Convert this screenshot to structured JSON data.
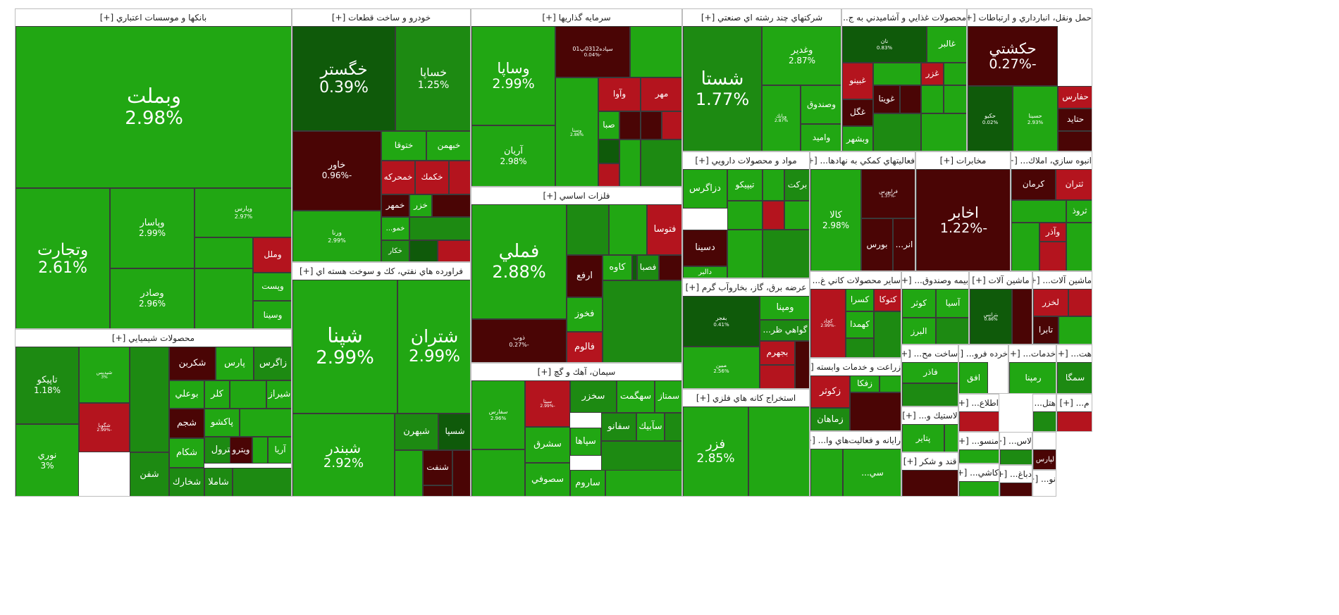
{
  "chart_data": {
    "type": "treemap",
    "colors": {
      "up_strong": "#21a713",
      "up_mid": "#1d8a12",
      "up_dark": "#0f5a0a",
      "down_strong": "#b4141e",
      "down_dark": "#4a0505"
    },
    "sectors": [
      {
        "name": "بانكها و موسسات اعتباري [+]",
        "tiles": [
          {
            "symbol": "وبملت",
            "change": "2.98%",
            "value": 2.98
          },
          {
            "symbol": "وتجارت",
            "change": "2.61%",
            "value": 2.61
          },
          {
            "symbol": "وپاسار",
            "change": "2.99%",
            "value": 2.99
          },
          {
            "symbol": "وصادر",
            "change": "2.96%",
            "value": 2.96
          },
          {
            "symbol": "وپارس",
            "change": "2.97%",
            "value": 2.97
          },
          {
            "symbol": "وملل",
            "change": "",
            "value": -2.5
          },
          {
            "symbol": "وپست",
            "change": "",
            "value": 2.5
          },
          {
            "symbol": "وسينا",
            "change": "",
            "value": 2.5
          }
        ]
      },
      {
        "name": "خودرو و ساخت قطعات [+]",
        "tiles": [
          {
            "symbol": "خگستر",
            "change": "0.39%",
            "value": 0.39
          },
          {
            "symbol": "خساپا",
            "change": "1.25%",
            "value": 1.25
          },
          {
            "symbol": "خاور",
            "change": "-0.96%",
            "value": -0.96
          },
          {
            "symbol": "ختوقا",
            "change": "",
            "value": 2.0
          },
          {
            "symbol": "خبهمن",
            "change": "",
            "value": 2.5
          },
          {
            "symbol": "خمحركه",
            "change": "",
            "value": -2.5
          },
          {
            "symbol": "خكمك",
            "change": "",
            "value": -2.0
          },
          {
            "symbol": "خمهر",
            "change": "",
            "value": -0.5
          },
          {
            "symbol": "خزر",
            "change": "",
            "value": 2.0
          },
          {
            "symbol": "ورنا",
            "change": "2.99%",
            "value": 2.99
          },
          {
            "symbol": "خمو...",
            "change": "",
            "value": 2.0
          },
          {
            "symbol": "خكار",
            "change": "",
            "value": 1.0
          }
        ]
      },
      {
        "name": "سرمايه گذاريها [+]",
        "tiles": [
          {
            "symbol": "وساپا",
            "change": "2.99%",
            "value": 2.99
          },
          {
            "symbol": "آريان",
            "change": "2.98%",
            "value": 2.98
          },
          {
            "symbol": "سپاده0312پ01",
            "change": "-0.04%",
            "value": -0.04
          },
          {
            "symbol": "وآوا",
            "change": "",
            "value": -2.5
          },
          {
            "symbol": "مهر",
            "change": "",
            "value": -2.5
          },
          {
            "symbol": "صبا",
            "change": "",
            "value": 2.5
          },
          {
            "symbol": "وسنا",
            "change": "2.86%",
            "value": 2.86
          }
        ]
      },
      {
        "name": "شركتهاي چند رشته اي صنعتي [+]",
        "tiles": [
          {
            "symbol": "شستا",
            "change": "1.77%",
            "value": 1.77
          },
          {
            "symbol": "وغدير",
            "change": "2.87%",
            "value": 2.87
          },
          {
            "symbol": "وصندوق",
            "change": "",
            "value": 2.0
          },
          {
            "symbol": "واميد",
            "change": "",
            "value": 2.5
          },
          {
            "symbol": "وبانك",
            "change": "2.87%",
            "value": 2.87
          }
        ]
      },
      {
        "name": "محصولات غذايي و آشاميدني به ج... [+]",
        "tiles": [
          {
            "symbol": "نان",
            "change": "0.83%",
            "value": 0.83
          },
          {
            "symbol": "غالبر",
            "change": "",
            "value": 2.5
          },
          {
            "symbol": "غبينو",
            "change": "",
            "value": -2.5
          },
          {
            "symbol": "غگل",
            "change": "",
            "value": -0.6
          },
          {
            "symbol": "غويتا",
            "change": "",
            "value": -0.8
          },
          {
            "symbol": "غزر",
            "change": "",
            "value": -2.0
          },
          {
            "symbol": "وبشهر",
            "change": "",
            "value": 2.5
          }
        ]
      },
      {
        "name": "حمل ونقل، انبارداري و ارتباطات [+]",
        "tiles": [
          {
            "symbol": "حكشتي",
            "change": "-0.27%",
            "value": -0.27
          },
          {
            "symbol": "حكيو",
            "change": "0.02%",
            "value": 0.02
          },
          {
            "symbol": "حسينا",
            "change": "2.93%",
            "value": 2.93
          },
          {
            "symbol": "حفارس",
            "change": "",
            "value": -2.5
          },
          {
            "symbol": "حتايد",
            "change": "",
            "value": -0.6
          }
        ]
      },
      {
        "name": "فلزات اساسي [+]",
        "tiles": [
          {
            "symbol": "فملي",
            "change": "2.88%",
            "value": 2.88
          },
          {
            "symbol": "ذوب",
            "change": "-0.27%",
            "value": -0.27
          },
          {
            "symbol": "فتوسا",
            "change": "",
            "value": -2.5
          },
          {
            "symbol": "ارفع",
            "change": "",
            "value": -0.6
          },
          {
            "symbol": "كاوه",
            "change": "",
            "value": 2.0
          },
          {
            "symbol": "فصبا",
            "change": "",
            "value": 1.0
          },
          {
            "symbol": "فخوز",
            "change": "",
            "value": 2.5
          },
          {
            "symbol": "فالوم",
            "change": "",
            "value": -2.5
          }
        ]
      },
      {
        "name": "مواد و محصولات دارويي [+]",
        "tiles": [
          {
            "symbol": "دزاگرس",
            "change": "",
            "value": 2.5
          },
          {
            "symbol": "تيپيكو",
            "change": "",
            "value": 2.0
          },
          {
            "symbol": "بركت",
            "change": "",
            "value": 1.0
          },
          {
            "symbol": "دسينا",
            "change": "",
            "value": -0.6
          },
          {
            "symbol": "دالبر",
            "change": "",
            "value": 2.5
          }
        ]
      },
      {
        "name": "فعاليتهاي كمكي به نهادها... [+]",
        "tiles": [
          {
            "symbol": "كالا",
            "change": "2.98%",
            "value": 2.98
          },
          {
            "symbol": "فرابورس",
            "change": "-1.37%",
            "value": -1.37
          },
          {
            "symbol": "بورس",
            "change": "",
            "value": -0.6
          },
          {
            "symbol": "انر...",
            "change": "",
            "value": -0.6
          }
        ]
      },
      {
        "name": "مخابرات [+]",
        "tiles": [
          {
            "symbol": "اخابر",
            "change": "-1.22%",
            "value": -1.22
          }
        ]
      },
      {
        "name": "انبوه سازي، املاك... [+]",
        "tiles": [
          {
            "symbol": "كرمان",
            "change": "",
            "value": -1.0
          },
          {
            "symbol": "ثتران",
            "change": "",
            "value": -2.5
          },
          {
            "symbol": "ثروذ",
            "change": "",
            "value": 2.5
          },
          {
            "symbol": "وآذر",
            "change": "",
            "value": -2.5
          }
        ]
      },
      {
        "name": "فراورده هاي نفتي، كك و سوخت هسته اي [+]",
        "tiles": [
          {
            "symbol": "شپنا",
            "change": "2.99%",
            "value": 2.99
          },
          {
            "symbol": "شتران",
            "change": "2.99%",
            "value": 2.99
          },
          {
            "symbol": "شبندر",
            "change": "2.92%",
            "value": 2.92
          },
          {
            "symbol": "شبهرن",
            "change": "",
            "value": 1.0
          },
          {
            "symbol": "شسپا",
            "change": "",
            "value": 0.5
          },
          {
            "symbol": "شنفت",
            "change": "",
            "value": -0.6
          }
        ]
      },
      {
        "name": "عرضه برق، گاز، بخاروآب گرم [+]",
        "tiles": [
          {
            "symbol": "بفجر",
            "change": "0.41%",
            "value": 0.41
          },
          {
            "symbol": "ومپنا",
            "change": "",
            "value": 2.5
          },
          {
            "symbol": "گواهي ظر...",
            "change": "",
            "value": 1.0
          },
          {
            "symbol": "مبين",
            "change": "2.56%",
            "value": 2.56
          },
          {
            "symbol": "بجهرم",
            "change": "",
            "value": -2.5
          }
        ]
      },
      {
        "name": "سيمان، آهك و گچ [+]",
        "tiles": [
          {
            "symbol": "سفارس",
            "change": "2.96%",
            "value": 2.96
          },
          {
            "symbol": "سيتا",
            "change": "-2.99%",
            "value": -2.99
          },
          {
            "symbol": "سخزر",
            "change": "",
            "value": 1.0
          },
          {
            "symbol": "سهگمت",
            "change": "",
            "value": 2.0
          },
          {
            "symbol": "سشرق",
            "change": "",
            "value": 2.5
          },
          {
            "symbol": "سپاها",
            "change": "",
            "value": 2.5
          },
          {
            "symbol": "سفانو",
            "change": "",
            "value": 1.0
          },
          {
            "symbol": "سآبيك",
            "change": "",
            "value": 2.0
          },
          {
            "symbol": "سصوفي",
            "change": "",
            "value": 2.5
          },
          {
            "symbol": "ساروم",
            "change": "",
            "value": 2.5
          },
          {
            "symbol": "سمتاز",
            "change": "",
            "value": 2.5
          }
        ]
      },
      {
        "name": "محصولات شيميايي [+]",
        "tiles": [
          {
            "symbol": "تاپيكو",
            "change": "1.18%",
            "value": 1.18
          },
          {
            "symbol": "نوري",
            "change": "3%",
            "value": 3.0
          },
          {
            "symbol": "شپديس",
            "change": "3%",
            "value": 3.0
          },
          {
            "symbol": "شگويا",
            "change": "-2.99%",
            "value": -2.99
          },
          {
            "symbol": "شكربن",
            "change": "",
            "value": -0.6
          },
          {
            "symbol": "پارس",
            "change": "",
            "value": 2.5
          },
          {
            "symbol": "زاگرس",
            "change": "",
            "value": 1.0
          },
          {
            "symbol": "بوعلي",
            "change": "",
            "value": 2.5
          },
          {
            "symbol": "كلر",
            "change": "",
            "value": 2.5
          },
          {
            "symbol": "شيراز",
            "change": "",
            "value": 2.5
          },
          {
            "symbol": "شجم",
            "change": "",
            "value": -0.6
          },
          {
            "symbol": "پاكشو",
            "change": "",
            "value": 2.5
          },
          {
            "symbol": "پترول",
            "change": "",
            "value": 1.0
          },
          {
            "symbol": "ويترو",
            "change": "",
            "value": -0.6
          },
          {
            "symbol": "آريا",
            "change": "",
            "value": 2.5
          },
          {
            "symbol": "شكام",
            "change": "",
            "value": 2.5
          },
          {
            "symbol": "شفن",
            "change": "",
            "value": 1.0
          },
          {
            "symbol": "شخارك",
            "change": "",
            "value": 1.0
          },
          {
            "symbol": "شاملا",
            "change": "",
            "value": 1.0
          }
        ]
      },
      {
        "name": "استخراج كانه هاي فلزي [+]",
        "tiles": [
          {
            "symbol": "فزر",
            "change": "2.85%",
            "value": 2.85
          }
        ]
      },
      {
        "name": "زراعت و خدمات وابسته [+]",
        "tiles": [
          {
            "symbol": "زكوثر",
            "change": "",
            "value": -2.5
          },
          {
            "symbol": "زفكا",
            "change": "",
            "value": 2.5
          },
          {
            "symbol": "زماهان",
            "change": "",
            "value": 1.0
          }
        ]
      },
      {
        "name": "ساير محصولات كاني غ... [+]",
        "tiles": [
          {
            "symbol": "كچاد",
            "change": "-2.99%",
            "value": -2.99
          },
          {
            "symbol": "كسرا",
            "change": "",
            "value": 2.5
          },
          {
            "symbol": "كتوكا",
            "change": "",
            "value": -2.5
          },
          {
            "symbol": "كهمدا",
            "change": "",
            "value": 2.5
          }
        ]
      },
      {
        "name": "بيمه وصندوق... [+]",
        "tiles": [
          {
            "symbol": "كوثر",
            "change": "",
            "value": 2.5
          },
          {
            "symbol": "آسيا",
            "change": "",
            "value": 2.5
          },
          {
            "symbol": "البرز",
            "change": "",
            "value": 2.5
          }
        ]
      },
      {
        "name": "ماشين آلات [+]",
        "tiles": [
          {
            "symbol": "بترانس",
            "change": "0.86%",
            "value": 0.86
          }
        ]
      },
      {
        "name": "ماشين آلات... [+]",
        "tiles": [
          {
            "symbol": "لخزر",
            "change": "",
            "value": -2.5
          },
          {
            "symbol": "تابرا",
            "change": "",
            "value": -0.6
          },
          {
            "symbol": "لسرما",
            "change": "",
            "value": -2.5
          }
        ]
      },
      {
        "name": "ساخت مح... [+]",
        "tiles": [
          {
            "symbol": "فاذر",
            "change": "",
            "value": 2.5
          }
        ]
      },
      {
        "name": "خرده فرو... [+]",
        "tiles": [
          {
            "symbol": "افق",
            "change": "",
            "value": 2.5
          }
        ]
      },
      {
        "name": "خدمات... [+]",
        "tiles": [
          {
            "symbol": "رمپنا",
            "change": "",
            "value": 2.5
          }
        ]
      },
      {
        "name": "هت... [+]",
        "tiles": [
          {
            "symbol": "سمگا",
            "change": "",
            "value": 1.0
          }
        ]
      },
      {
        "name": "لاستيك و... [+]",
        "tiles": [
          {
            "symbol": "پتاير",
            "change": "",
            "value": 2.5
          }
        ]
      },
      {
        "name": "رايانه و فعاليت‌هاي وا... [+]",
        "tiles": [
          {
            "symbol": "سي...",
            "change": "",
            "value": 2.5
          }
        ]
      },
      {
        "name": "قند و شكر [+]",
        "tiles": []
      },
      {
        "name": "اطلاع... [+]",
        "tiles": []
      },
      {
        "name": "م... [+]",
        "tiles": []
      },
      {
        "name": "هتل... [+]",
        "tiles": []
      },
      {
        "name": "منسو... [+]",
        "tiles": []
      },
      {
        "name": "لاس... [+]",
        "tiles": []
      },
      {
        "name": "دباغ... [+]",
        "tiles": []
      },
      {
        "name": "لپارس",
        "tiles": [
          {
            "symbol": "لپارس",
            "change": "",
            "value": -0.6
          }
        ]
      },
      {
        "name": "كاشي... [+]",
        "tiles": []
      },
      {
        "name": "نو... [+]",
        "tiles": []
      }
    ]
  }
}
